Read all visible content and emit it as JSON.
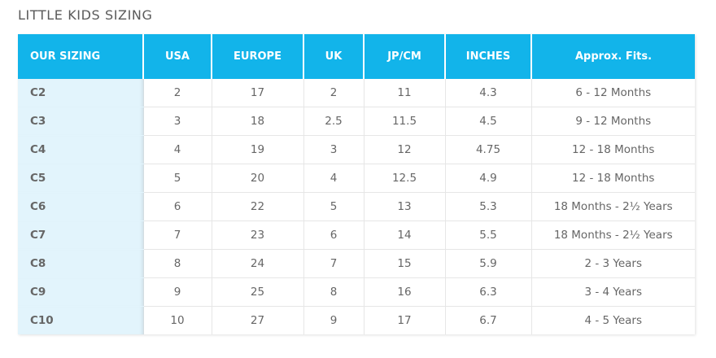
{
  "title": "LITTLE KIDS SIZING",
  "colors": {
    "header_bg": "#12b4ea",
    "first_col_bg": "#e2f4fc",
    "text": "#666666"
  },
  "table": {
    "headers": [
      "OUR SIZING",
      "USA",
      "EUROPE",
      "UK",
      "JP/CM",
      "INCHES",
      "Approx. Fits."
    ],
    "rows": [
      [
        "C2",
        "2",
        "17",
        "2",
        "11",
        "4.3",
        "6 - 12 Months"
      ],
      [
        "C3",
        "3",
        "18",
        "2.5",
        "11.5",
        "4.5",
        "9 - 12 Months"
      ],
      [
        "C4",
        "4",
        "19",
        "3",
        "12",
        "4.75",
        "12 - 18 Months"
      ],
      [
        "C5",
        "5",
        "20",
        "4",
        "12.5",
        "4.9",
        "12 - 18 Months"
      ],
      [
        "C6",
        "6",
        "22",
        "5",
        "13",
        "5.3",
        "18 Months - 2½ Years"
      ],
      [
        "C7",
        "7",
        "23",
        "6",
        "14",
        "5.5",
        "18 Months - 2½ Years"
      ],
      [
        "C8",
        "8",
        "24",
        "7",
        "15",
        "5.9",
        "2 - 3 Years"
      ],
      [
        "C9",
        "9",
        "25",
        "8",
        "16",
        "6.3",
        "3 - 4 Years"
      ],
      [
        "C10",
        "10",
        "27",
        "9",
        "17",
        "6.7",
        "4 - 5 Years"
      ]
    ]
  }
}
